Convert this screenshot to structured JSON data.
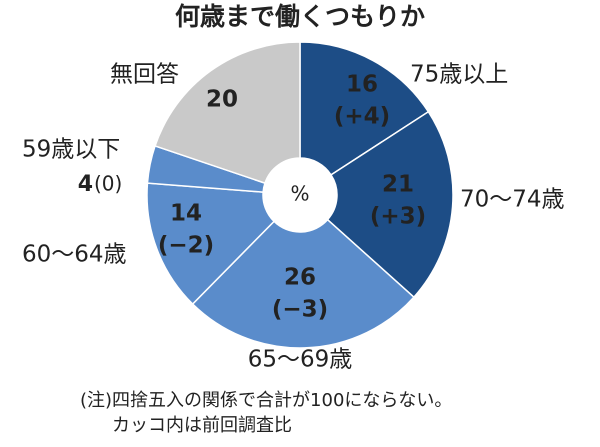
{
  "chart_data": {
    "type": "donut",
    "title": "何歳まで働くつもりか",
    "categories": [
      "75歳以上",
      "70～74歳",
      "65～69歳",
      "60～64歳",
      "59歳以下",
      "無回答"
    ],
    "values": [
      16,
      21,
      26,
      14,
      4,
      20
    ],
    "change_labels": [
      "(+4)",
      "(+3)",
      "(−3)",
      "(−2)",
      "(0)",
      null
    ],
    "colors": [
      "#1d4d86",
      "#1d4d86",
      "#5a8ccb",
      "#5a8ccb",
      "#5a8ccb",
      "#c9c9c9"
    ],
    "unit": "%",
    "note": [
      "(注)四捨五入の関係で合計が100にならない。",
      "カッコ内は前回調査比"
    ]
  }
}
